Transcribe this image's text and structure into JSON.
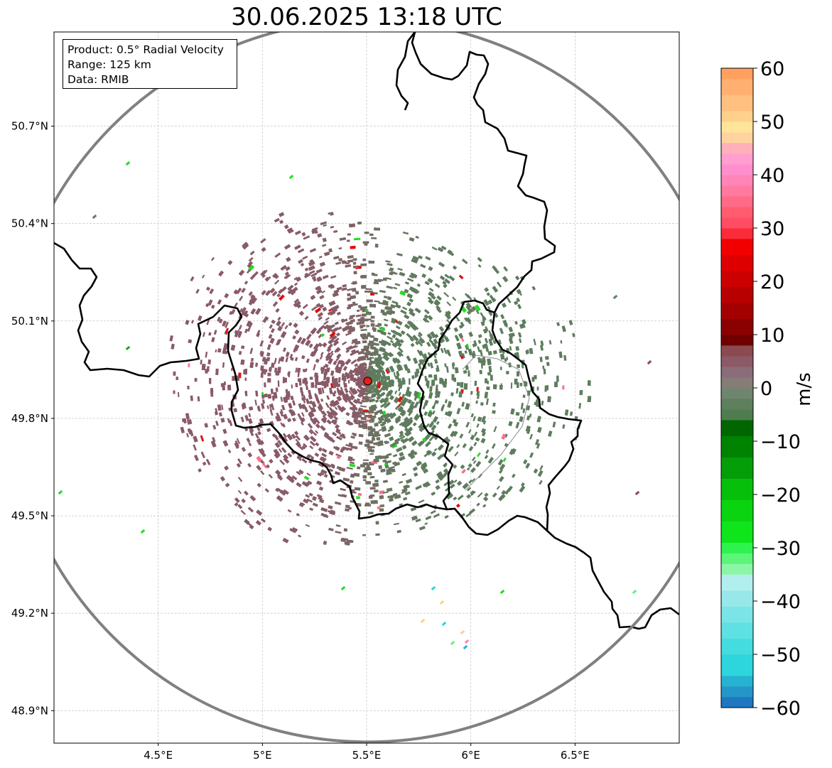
{
  "title": "30.06.2025 13:18 UTC",
  "info_box": {
    "product": "Product: 0.5° Radial Velocity",
    "range": "Range: 125 km",
    "data": "Data: RMIB"
  },
  "map": {
    "lon_range": [
      4.0,
      7.0
    ],
    "lat_range": [
      48.8,
      50.99
    ],
    "lon_ticks": [
      {
        "value": 4.5,
        "label": "4.5°E"
      },
      {
        "value": 5.0,
        "label": "5°E"
      },
      {
        "value": 5.5,
        "label": "5.5°E"
      },
      {
        "value": 6.0,
        "label": "6°E"
      },
      {
        "value": 6.5,
        "label": "6.5°E"
      }
    ],
    "lat_ticks": [
      {
        "value": 50.7,
        "label": "50.7°N"
      },
      {
        "value": 50.4,
        "label": "50.4°N"
      },
      {
        "value": 50.1,
        "label": "50.1°N"
      },
      {
        "value": 49.8,
        "label": "49.8°N"
      },
      {
        "value": 49.5,
        "label": "49.5°N"
      },
      {
        "value": 49.2,
        "label": "49.2°N"
      },
      {
        "value": 48.9,
        "label": "48.9°N"
      }
    ],
    "grid": true,
    "radar_site": {
      "lon": 5.505,
      "lat": 49.915
    },
    "range_ring_km": 125,
    "colors": {
      "range_ring": "#808080",
      "border": "#000000",
      "radar_site": "#e8201c",
      "inbound": "#5e7d5e",
      "outbound": "#8a5a68"
    }
  },
  "colorbar": {
    "label": "m/s",
    "min": -60,
    "max": 60,
    "ticks": [
      {
        "value": 60,
        "label": "60"
      },
      {
        "value": 50,
        "label": "50"
      },
      {
        "value": 40,
        "label": "40"
      },
      {
        "value": 30,
        "label": "30"
      },
      {
        "value": 20,
        "label": "20"
      },
      {
        "value": 10,
        "label": "10"
      },
      {
        "value": 0,
        "label": "0"
      },
      {
        "value": -10,
        "label": "−10"
      },
      {
        "value": -20,
        "label": "−20"
      },
      {
        "value": -30,
        "label": "−30"
      },
      {
        "value": -40,
        "label": "−40"
      },
      {
        "value": -50,
        "label": "−50"
      },
      {
        "value": -60,
        "label": "−60"
      }
    ],
    "bands": [
      {
        "from": -60,
        "to": -58,
        "color": "#1f77c0"
      },
      {
        "from": -58,
        "to": -56,
        "color": "#2496c8"
      },
      {
        "from": -56,
        "to": -54,
        "color": "#27b2d2"
      },
      {
        "from": -54,
        "to": -50,
        "color": "#2dd6dc"
      },
      {
        "from": -50,
        "to": -47,
        "color": "#45dcdf"
      },
      {
        "from": -47,
        "to": -44,
        "color": "#5fe0e2"
      },
      {
        "from": -44,
        "to": -41,
        "color": "#7be4e6"
      },
      {
        "from": -41,
        "to": -38,
        "color": "#98e8ea"
      },
      {
        "from": -38,
        "to": -35,
        "color": "#b3eeef"
      },
      {
        "from": -35,
        "to": -33,
        "color": "#8df5a8"
      },
      {
        "from": -33,
        "to": -31,
        "color": "#5cf57a"
      },
      {
        "from": -31,
        "to": -29,
        "color": "#2ef24d"
      },
      {
        "from": -29,
        "to": -25,
        "color": "#0ee51a"
      },
      {
        "from": -25,
        "to": -21,
        "color": "#0ad40f"
      },
      {
        "from": -21,
        "to": -17,
        "color": "#06bf0b"
      },
      {
        "from": -17,
        "to": -13,
        "color": "#049e08"
      },
      {
        "from": -13,
        "to": -9,
        "color": "#008300"
      },
      {
        "from": -9,
        "to": -6,
        "color": "#006600"
      },
      {
        "from": -6,
        "to": -4,
        "color": "#507d50"
      },
      {
        "from": -4,
        "to": -2,
        "color": "#5e805e"
      },
      {
        "from": -2,
        "to": 0,
        "color": "#6f856f"
      },
      {
        "from": 0,
        "to": 2,
        "color": "#857d76"
      },
      {
        "from": 2,
        "to": 4,
        "color": "#8a6d78"
      },
      {
        "from": 4,
        "to": 6,
        "color": "#8c5a66"
      },
      {
        "from": 6,
        "to": 8,
        "color": "#8a4a50"
      },
      {
        "from": 8,
        "to": 10,
        "color": "#700000"
      },
      {
        "from": 10,
        "to": 13,
        "color": "#8b0000"
      },
      {
        "from": 13,
        "to": 16,
        "color": "#a30000"
      },
      {
        "from": 16,
        "to": 19,
        "color": "#b80000"
      },
      {
        "from": 19,
        "to": 22,
        "color": "#cc0000"
      },
      {
        "from": 22,
        "to": 25,
        "color": "#de0000"
      },
      {
        "from": 25,
        "to": 28,
        "color": "#f20000"
      },
      {
        "from": 28,
        "to": 30,
        "color": "#fb2c3a"
      },
      {
        "from": 30,
        "to": 32,
        "color": "#ff4d63"
      },
      {
        "from": 32,
        "to": 34,
        "color": "#ff5c70"
      },
      {
        "from": 34,
        "to": 36,
        "color": "#ff6a86"
      },
      {
        "from": 36,
        "to": 38,
        "color": "#ff7a9e"
      },
      {
        "from": 38,
        "to": 40,
        "color": "#ff84b8"
      },
      {
        "from": 40,
        "to": 42,
        "color": "#ff8fcc"
      },
      {
        "from": 42,
        "to": 44,
        "color": "#ff9fd0"
      },
      {
        "from": 44,
        "to": 46,
        "color": "#ffb0b8"
      },
      {
        "from": 46,
        "to": 48,
        "color": "#ffd3a0"
      },
      {
        "from": 48,
        "to": 50,
        "color": "#ffe59a"
      },
      {
        "from": 50,
        "to": 52,
        "color": "#ffd08c"
      },
      {
        "from": 52,
        "to": 55,
        "color": "#ffc080"
      },
      {
        "from": 55,
        "to": 58,
        "color": "#ffb070"
      },
      {
        "from": 58,
        "to": 60,
        "color": "#ffa060"
      }
    ]
  }
}
